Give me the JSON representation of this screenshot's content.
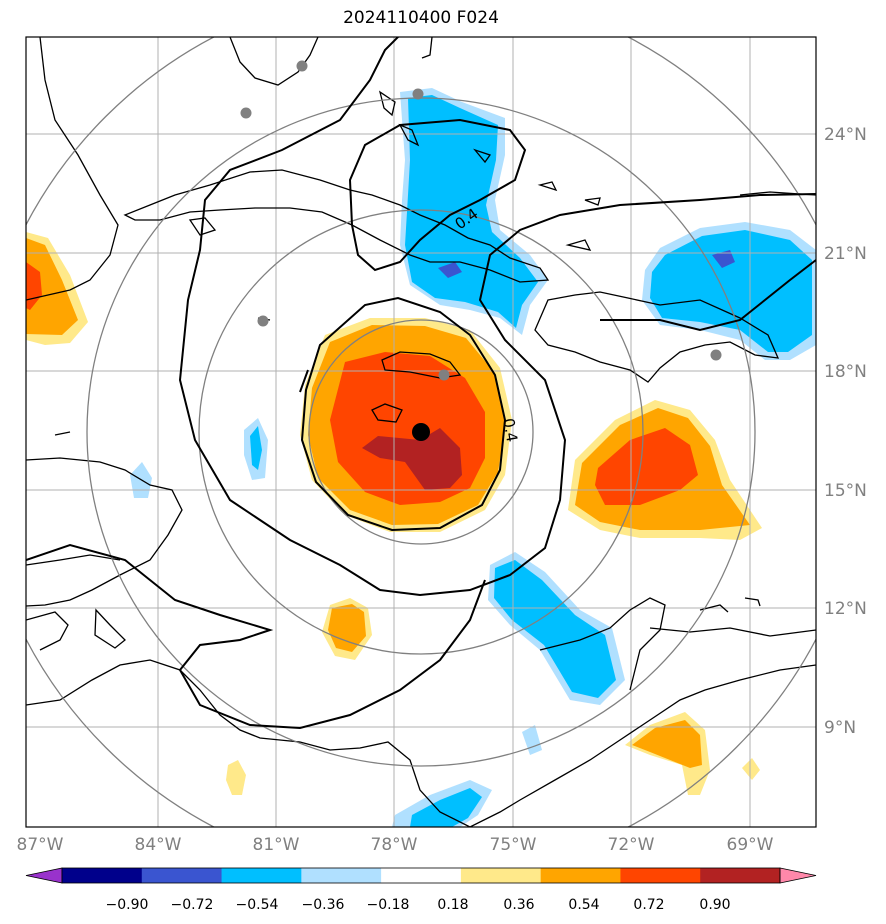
{
  "title": "2024110400 F024",
  "map": {
    "lon_ticks": [
      "87°W",
      "84°W",
      "81°W",
      "78°W",
      "75°W",
      "72°W",
      "69°W"
    ],
    "lat_ticks": [
      "24°N",
      "21°N",
      "18°N",
      "15°N",
      "12°N",
      "9°N"
    ],
    "contour_labels": [
      "0.4",
      "0.4"
    ],
    "gridline_color": "#b0b0b0",
    "range_ring_color": "#808080",
    "storm_center_marker": "black-dot",
    "station_markers": "grey-dots"
  },
  "colorbar": {
    "tick_labels": [
      "−0.90",
      "−0.72",
      "−0.54",
      "−0.36",
      "−0.18",
      "0.18",
      "0.36",
      "0.54",
      "0.72",
      "0.90"
    ],
    "colors": [
      "#9932cc",
      "#00008b",
      "#3a55d0",
      "#00bfff",
      "#b0e0ff",
      "#ffffff",
      "#ffe98a",
      "#ffa500",
      "#ff4500",
      "#b22222",
      "#ff88aa"
    ]
  }
}
